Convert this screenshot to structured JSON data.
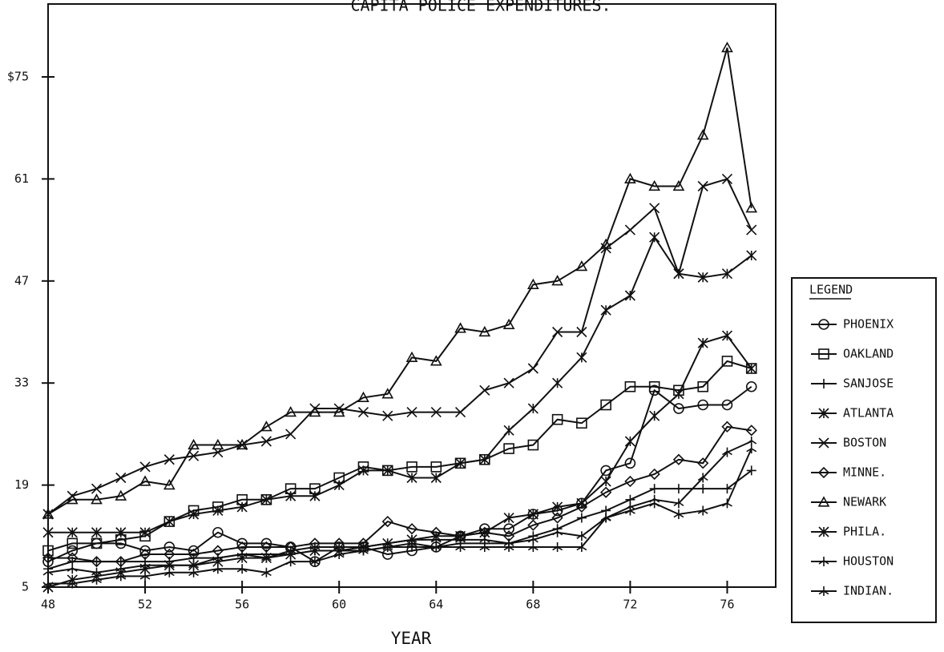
{
  "chart_data": {
    "type": "line",
    "title": "CAPITA POLICE EXPENDITURES.",
    "x_label": "YEAR",
    "legend_title": "LEGEND",
    "legend": "right",
    "x": [
      48,
      49,
      50,
      51,
      52,
      53,
      54,
      55,
      56,
      57,
      58,
      59,
      60,
      61,
      62,
      63,
      64,
      65,
      66,
      67,
      68,
      69,
      70,
      71,
      72,
      73,
      74,
      75,
      76,
      77
    ],
    "xlim": [
      48,
      78
    ],
    "xticks": [
      48,
      52,
      56,
      60,
      64,
      68,
      72,
      76
    ],
    "ylim": [
      5,
      85
    ],
    "yticks": [
      5,
      19,
      33,
      47,
      61,
      {
        "value": 75,
        "label": "$75"
      }
    ],
    "series": [
      {
        "name": "PHOENIX",
        "marker": "circle",
        "color": "#111",
        "values": [
          8.5,
          10,
          11,
          11,
          10,
          10.5,
          10,
          12.5,
          11,
          11,
          10.5,
          8.5,
          10.5,
          10.5,
          9.5,
          10,
          10.5,
          12,
          13,
          13,
          15,
          15.5,
          16.5,
          21,
          22,
          32,
          29.5,
          30,
          30,
          32.5
        ]
      },
      {
        "name": "OAKLAND",
        "marker": "square",
        "color": "#111",
        "values": [
          10,
          11,
          11,
          11.5,
          12,
          14,
          15.5,
          16,
          17,
          17,
          18.5,
          18.5,
          20,
          21.5,
          21,
          21.5,
          21.5,
          22,
          22.5,
          24,
          24.5,
          28,
          27.5,
          30,
          32.5,
          32.5,
          32,
          32.5,
          36,
          35
        ]
      },
      {
        "name": "SANJOSE",
        "marker": "plus",
        "color": "#111",
        "values": [
          7.5,
          8.5,
          8.5,
          8.5,
          8.5,
          8.5,
          9,
          9,
          9.5,
          9.5,
          9.5,
          10,
          10,
          10,
          10.5,
          10.5,
          10.5,
          11,
          11,
          11,
          12,
          13,
          14.5,
          15.5,
          17,
          18.5,
          18.5,
          18.5,
          18.5,
          21
        ]
      },
      {
        "name": "ATLANTA",
        "marker": "asterisk",
        "color": "#111",
        "values": [
          12.5,
          12.5,
          12.5,
          12.5,
          12.5,
          14,
          15,
          15.5,
          16,
          17,
          17.5,
          17.5,
          19,
          21,
          21,
          20,
          20,
          22,
          22.5,
          26.5,
          29.5,
          33,
          36.5,
          43,
          45,
          53,
          48,
          47.5,
          48,
          50.5
        ]
      },
      {
        "name": "BOSTON",
        "marker": "cross",
        "color": "#111",
        "values": [
          15,
          17.5,
          18.5,
          20,
          21.5,
          22.5,
          23,
          23.5,
          24.5,
          25,
          26,
          29.5,
          29.5,
          29,
          28.5,
          29,
          29,
          29,
          32,
          33,
          35,
          40,
          40,
          51.5,
          54,
          57,
          48,
          60,
          61,
          54
        ]
      },
      {
        "name": "MINNE.",
        "marker": "diamond",
        "color": "#111",
        "values": [
          9,
          9,
          8.5,
          8.5,
          9.5,
          9.5,
          9.5,
          10,
          10.5,
          10.5,
          10.5,
          11,
          11,
          11,
          14,
          13,
          12.5,
          12,
          12.5,
          12,
          13.5,
          14.5,
          16,
          18,
          19.5,
          20.5,
          22.5,
          22,
          27,
          26.5
        ]
      },
      {
        "name": "NEWARK",
        "marker": "triangle",
        "color": "#111",
        "values": [
          15,
          17,
          17,
          17.5,
          19.5,
          19,
          24.5,
          24.5,
          24.5,
          27,
          29,
          29,
          29,
          31,
          31.5,
          36.5,
          36,
          40.5,
          40,
          41,
          46.5,
          47,
          49,
          52,
          61,
          60,
          60,
          67,
          79,
          57
        ]
      },
      {
        "name": "PHILA.",
        "marker": "asterisk",
        "color": "#111",
        "values": [
          5,
          6,
          6.5,
          7,
          7.5,
          8,
          8,
          8.5,
          9,
          9,
          9.5,
          10,
          10,
          10.5,
          11,
          11.5,
          12,
          12,
          12.5,
          14.5,
          15,
          16,
          16.5,
          19.5,
          25,
          28.5,
          31.5,
          38.5,
          39.5,
          35
        ]
      },
      {
        "name": "HOUSTON",
        "marker": "star",
        "color": "#111",
        "values": [
          7,
          7.5,
          7,
          7.5,
          8,
          8,
          8,
          9,
          9.5,
          9,
          10,
          10.5,
          10.5,
          10.5,
          11,
          11.5,
          11.5,
          11.5,
          11.5,
          11,
          11.5,
          12.5,
          12,
          14.5,
          16,
          17,
          16.5,
          20,
          23.5,
          25
        ]
      },
      {
        "name": "INDIAN.",
        "marker": "arrow",
        "color": "#111",
        "values": [
          5.5,
          5.5,
          6,
          6.5,
          6.5,
          7,
          7,
          7.5,
          7.5,
          7,
          8.5,
          8.5,
          9.5,
          10,
          10.5,
          11,
          10.5,
          10.5,
          10.5,
          10.5,
          10.5,
          10.5,
          10.5,
          14.5,
          15.5,
          16.5,
          15,
          15.5,
          16.5,
          24
        ]
      }
    ]
  }
}
